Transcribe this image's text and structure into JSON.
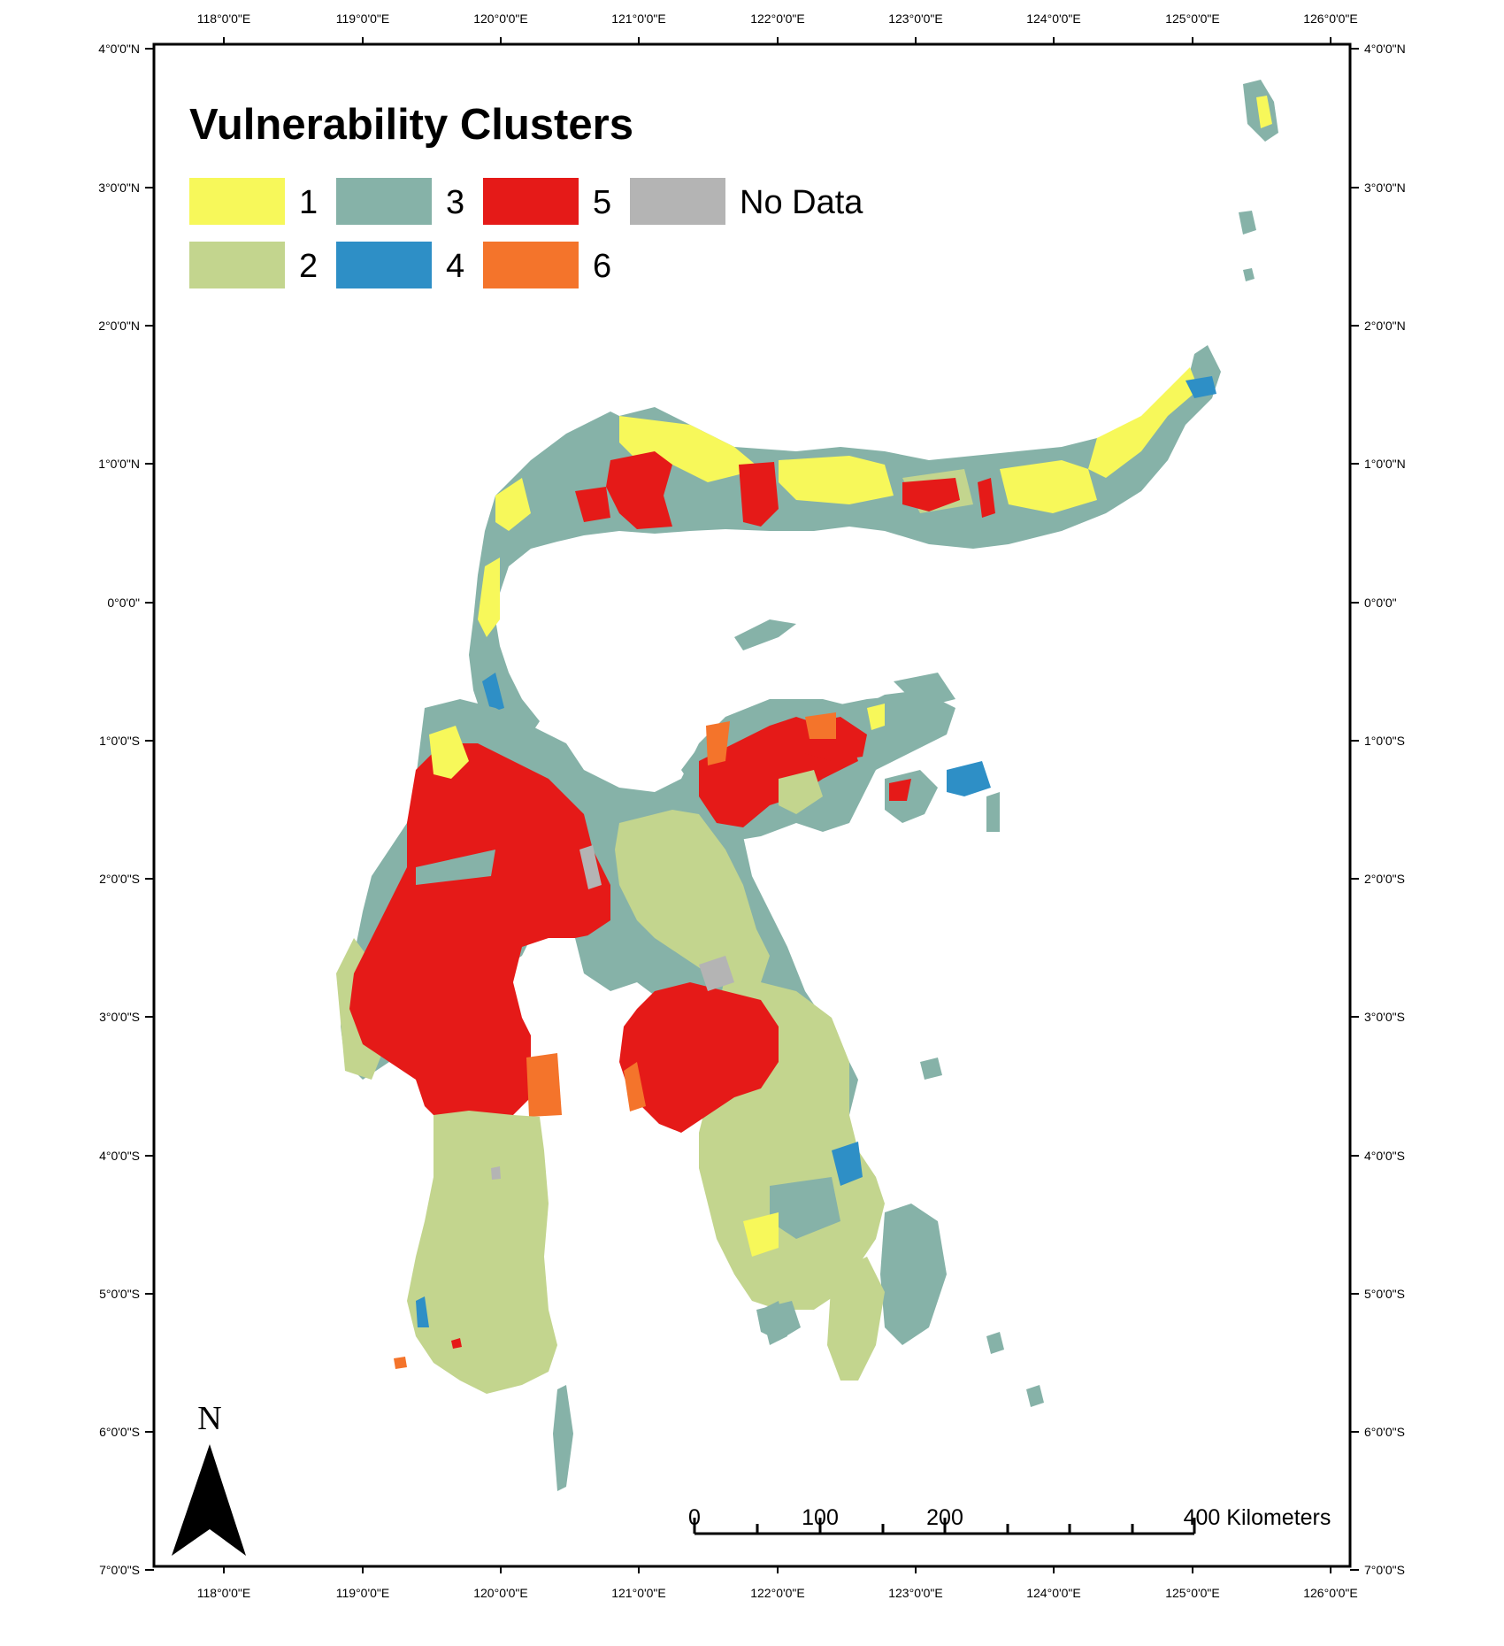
{
  "map": {
    "title": "Vulnerability Clusters",
    "top_axis_labels": [
      "118°0'0\"E",
      "119°0'0\"E",
      "120°0'0\"E",
      "121°0'0\"E",
      "122°0'0\"E",
      "123°0'0\"E",
      "124°0'0\"E",
      "125°0'0\"E",
      "126°0'0\"E"
    ],
    "bottom_axis_labels": [
      "118°0'0\"E",
      "119°0'0\"E",
      "120°0'0\"E",
      "121°0'0\"E",
      "122°0'0\"E",
      "123°0'0\"E",
      "124°0'0\"E",
      "125°0'0\"E",
      "126°0'0\"E"
    ],
    "left_axis_labels": [
      "4°0'0\"N",
      "3°0'0\"N",
      "2°0'0\"N",
      "1°0'0\"N",
      "0°0'0\"",
      "1°0'0\"S",
      "2°0'0\"S",
      "3°0'0\"S",
      "4°0'0\"S",
      "5°0'0\"S",
      "6°0'0\"S",
      "7°0'0\"S"
    ],
    "right_axis_labels": [
      "4°0'0\"N",
      "3°0'0\"N",
      "2°0'0\"N",
      "1°0'0\"N",
      "0°0'0\"",
      "1°0'0\"S",
      "2°0'0\"S",
      "3°0'0\"S",
      "4°0'0\"S",
      "5°0'0\"S",
      "6°0'0\"S",
      "7°0'0\"S"
    ],
    "legend": [
      {
        "label": "1",
        "color": "#f7f85a"
      },
      {
        "label": "2",
        "color": "#c3d58e"
      },
      {
        "label": "3",
        "color": "#86b2a8"
      },
      {
        "label": "4",
        "color": "#2e8fc6"
      },
      {
        "label": "5",
        "color": "#e51a18"
      },
      {
        "label": "6",
        "color": "#f4742b"
      },
      {
        "label": "No Data",
        "color": "#b4b4b4"
      }
    ],
    "north_label": "N",
    "scale_labels": [
      "0",
      "100",
      "200",
      "400 Kilometers"
    ]
  }
}
